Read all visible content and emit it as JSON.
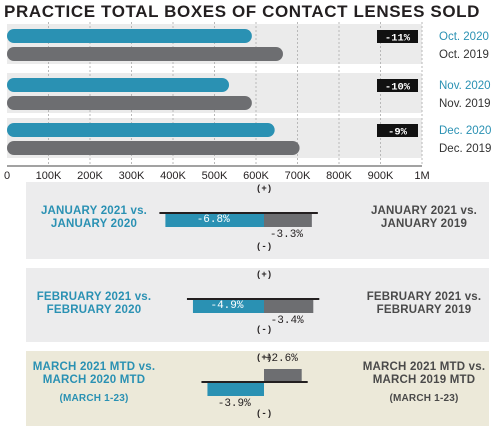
{
  "chart_data": [
    {
      "type": "bar",
      "orientation": "horizontal",
      "title": "PRACTICE TOTAL BOXES OF CONTACT LENSES SOLD",
      "xlim": [
        0,
        1000000
      ],
      "x_ticks": [
        "0",
        "100K",
        "200K",
        "300K",
        "400K",
        "500K",
        "600K",
        "700K",
        "800K",
        "900K",
        "1M"
      ],
      "grid": "vertical dashed",
      "groups": [
        {
          "bars": [
            {
              "label": "Oct. 2020",
              "value": 590000,
              "color": "#2a91b3"
            },
            {
              "label": "Oct. 2019",
              "value": 665000,
              "color": "#6d6e71"
            }
          ],
          "change": "-11%"
        },
        {
          "bars": [
            {
              "label": "Nov. 2020",
              "value": 535000,
              "color": "#2a91b3"
            },
            {
              "label": "Nov. 2019",
              "value": 590000,
              "color": "#6d6e71"
            }
          ],
          "change": "-10%"
        },
        {
          "bars": [
            {
              "label": "Dec. 2020",
              "value": 645000,
              "color": "#2a91b3"
            },
            {
              "label": "Dec. 2019",
              "value": 705000,
              "color": "#6d6e71"
            }
          ],
          "change": "-9%"
        }
      ]
    },
    {
      "type": "bar",
      "orientation": "diverging",
      "plus_label": "(+)",
      "minus_label": "(-)",
      "comparisons": [
        {
          "left": [
            "JANUARY 2021 vs.",
            "JANUARY 2020"
          ],
          "left_value": -6.8,
          "left_text": "-6.8%",
          "right": [
            "JANUARY 2021 vs.",
            "JANUARY 2019"
          ],
          "right_value": -3.3,
          "right_text": "-3.3%",
          "background": "grey"
        },
        {
          "left": [
            "FEBRUARY 2021 vs.",
            "FEBRUARY 2020"
          ],
          "left_value": -4.9,
          "left_text": "-4.9%",
          "right": [
            "FEBRUARY 2021 vs.",
            "FEBRUARY 2019"
          ],
          "right_value": -3.4,
          "right_text": "-3.4%",
          "background": "grey"
        },
        {
          "left": [
            "MARCH 2021 MTD vs.",
            "MARCH 2020 MTD"
          ],
          "left_note": "(MARCH 1-23)",
          "left_value": -3.9,
          "left_text": "-3.9%",
          "right": [
            "MARCH 2021 MTD vs.",
            "MARCH 2019 MTD"
          ],
          "right_note": "(MARCH 1-23)",
          "right_value": 2.6,
          "right_text": "+2.6%",
          "background": "cream"
        }
      ],
      "colors": {
        "current": "#2a91b3",
        "comparison": "#6d6e71"
      }
    }
  ]
}
